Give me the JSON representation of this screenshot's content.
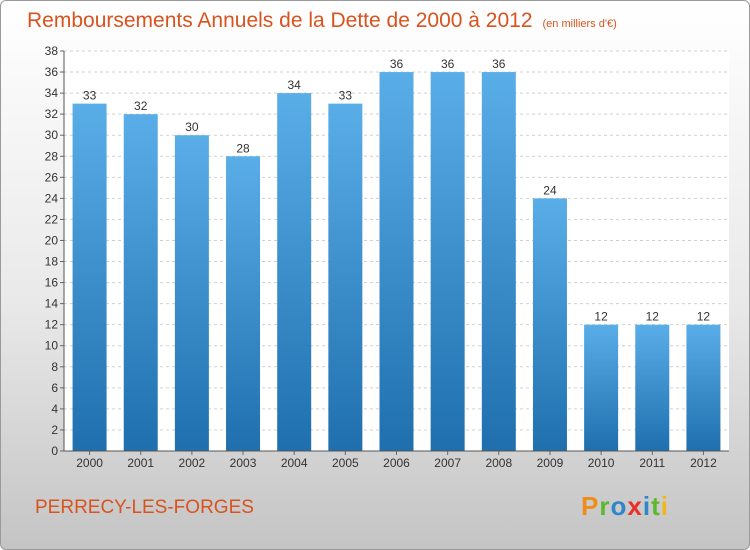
{
  "title": "Remboursements Annuels de la Dette de 2000 à 2012",
  "unit": "(en milliers d'€)",
  "commune": "PERRECY-LES-FORGES",
  "brand": {
    "letters": [
      "P",
      "r",
      "o",
      "x",
      "i",
      "t",
      "i"
    ],
    "colors": [
      "#f08c1a",
      "#5cb82e",
      "#2f86c9",
      "#e8302a",
      "#2f86c9",
      "#5cb82e",
      "#f2b51c"
    ]
  },
  "colors": {
    "bar_light": "#5aaee8",
    "bar_dark": "#1f6fae",
    "label": "#d9531e"
  },
  "chart_data": {
    "type": "bar",
    "categories": [
      "2000",
      "2001",
      "2002",
      "2003",
      "2004",
      "2005",
      "2006",
      "2007",
      "2008",
      "2009",
      "2010",
      "2011",
      "2012"
    ],
    "values": [
      33,
      32,
      30,
      28,
      34,
      33,
      36,
      36,
      36,
      24,
      12,
      12,
      12
    ],
    "ylim": [
      0,
      38
    ],
    "yticks": [
      0,
      2,
      4,
      6,
      8,
      10,
      12,
      14,
      16,
      18,
      20,
      22,
      24,
      26,
      28,
      30,
      32,
      34,
      36,
      38
    ],
    "grid": true,
    "legend": "none"
  }
}
